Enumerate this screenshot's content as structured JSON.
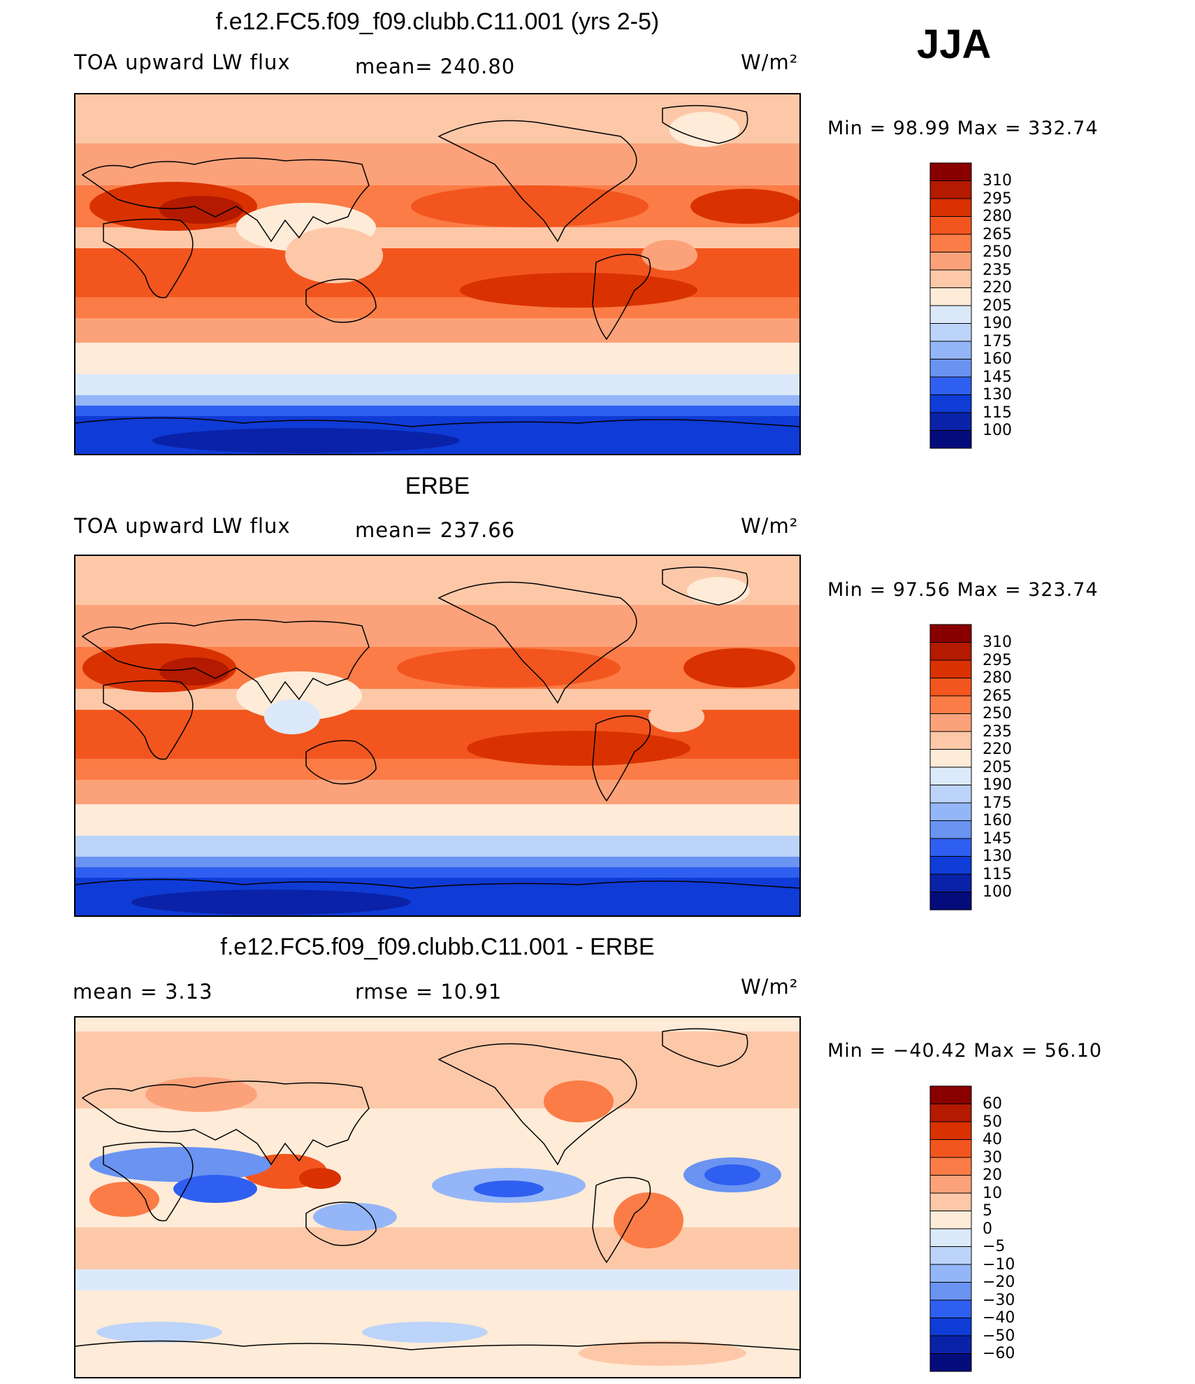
{
  "season": "JJA",
  "units": "W/m²",
  "panels": [
    {
      "title": "f.e12.FC5.f09_f09.clubb.C11.001 (yrs 2-5)",
      "left_label": "TOA upward LW flux",
      "mid_label": "mean=  240.80",
      "units": "W/m²",
      "minmax": "Min  =    98.99  Max  =  332.74"
    },
    {
      "title": "ERBE",
      "left_label": "TOA upward LW flux",
      "mid_label": "mean=  237.66",
      "units": "W/m²",
      "minmax": "Min  =    97.56  Max  =  323.74"
    },
    {
      "title": "f.e12.FC5.f09_f09.clubb.C11.001 - ERBE",
      "left_label": "mean  =      3.13",
      "mid_label": "rmse  =    10.91",
      "units": "W/m²",
      "minmax": "Min  =  −40.42  Max  =    56.10"
    }
  ],
  "chart_data": [
    {
      "type": "heatmap",
      "title": "f.e12.FC5.f09_f09.clubb.C11.001 (yrs 2-5)",
      "variable": "TOA upward LW flux",
      "units": "W/m²",
      "mean": 240.8,
      "min": 98.99,
      "max": 332.74,
      "colorbar_levels": [
        "310",
        "295",
        "280",
        "265",
        "250",
        "235",
        "220",
        "205",
        "190",
        "175",
        "160",
        "145",
        "130",
        "115",
        "100"
      ],
      "colorbar_colors": [
        "#8a0000",
        "#b31a00",
        "#d93200",
        "#f2561e",
        "#fb7c46",
        "#fca27a",
        "#fdc8a8",
        "#feebd8",
        "#dbe9fb",
        "#bcd4fa",
        "#94b6f8",
        "#6a93f2",
        "#2f5ff0",
        "#0f3bd6",
        "#0a22a8",
        "#040c7c"
      ]
    },
    {
      "type": "heatmap",
      "title": "ERBE",
      "variable": "TOA upward LW flux",
      "units": "W/m²",
      "mean": 237.66,
      "min": 97.56,
      "max": 323.74,
      "colorbar_levels": [
        "310",
        "295",
        "280",
        "265",
        "250",
        "235",
        "220",
        "205",
        "190",
        "175",
        "160",
        "145",
        "130",
        "115",
        "100"
      ],
      "colorbar_colors": [
        "#8a0000",
        "#b31a00",
        "#d93200",
        "#f2561e",
        "#fb7c46",
        "#fca27a",
        "#fdc8a8",
        "#feebd8",
        "#dbe9fb",
        "#bcd4fa",
        "#94b6f8",
        "#6a93f2",
        "#2f5ff0",
        "#0f3bd6",
        "#0a22a8",
        "#040c7c"
      ]
    },
    {
      "type": "heatmap",
      "title": "f.e12.FC5.f09_f09.clubb.C11.001 - ERBE",
      "units": "W/m²",
      "mean": 3.13,
      "rmse": 10.91,
      "min": -40.42,
      "max": 56.1,
      "colorbar_levels": [
        "60",
        "50",
        "40",
        "30",
        "20",
        "10",
        "5",
        "0",
        "−5",
        "−10",
        "−20",
        "−30",
        "−40",
        "−50",
        "−60"
      ],
      "colorbar_colors": [
        "#8a0000",
        "#b31a00",
        "#d93200",
        "#f2561e",
        "#fb7c46",
        "#fca27a",
        "#fdc8a8",
        "#feebd8",
        "#dbe9fb",
        "#bcd4fa",
        "#94b6f8",
        "#6a93f2",
        "#2f5ff0",
        "#0f3bd6",
        "#0a22a8",
        "#040c7c"
      ]
    }
  ]
}
